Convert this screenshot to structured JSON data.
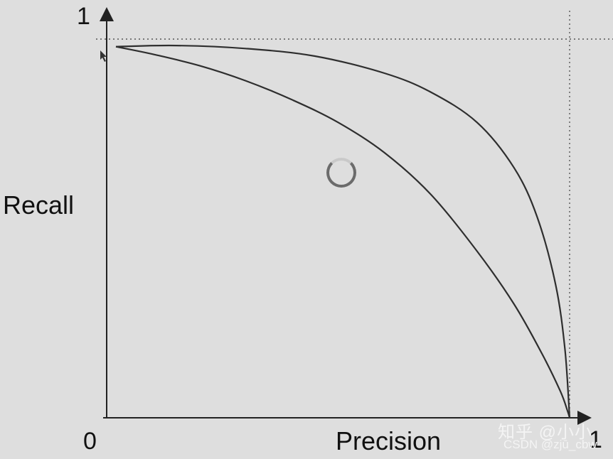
{
  "chart_data": {
    "type": "line",
    "title": "",
    "xlabel": "Precision",
    "ylabel": "Recall",
    "xlim": [
      0,
      1
    ],
    "ylim": [
      0,
      1
    ],
    "tick_labels": {
      "y_top": "1",
      "origin": "0",
      "x_end": "1"
    },
    "reference_lines": {
      "x": 1,
      "y": 1,
      "style": "dotted"
    },
    "grid": false,
    "legend": "none",
    "series": [
      {
        "color": "#2e2e2e",
        "x": [
          0.02,
          0.1,
          0.2,
          0.3,
          0.4,
          0.5,
          0.6,
          0.7,
          0.8,
          0.88,
          0.94,
          0.98,
          0.995,
          1.0
        ],
        "y": [
          0.98,
          0.96,
          0.93,
          0.89,
          0.84,
          0.78,
          0.7,
          0.59,
          0.44,
          0.3,
          0.17,
          0.07,
          0.02,
          0.0
        ]
      },
      {
        "color": "#2e2e2e",
        "x": [
          0.02,
          0.15,
          0.3,
          0.45,
          0.6,
          0.7,
          0.8,
          0.88,
          0.93,
          0.97,
          0.99,
          1.0
        ],
        "y": [
          0.98,
          0.983,
          0.975,
          0.955,
          0.91,
          0.86,
          0.78,
          0.66,
          0.53,
          0.35,
          0.18,
          0.0
        ]
      }
    ]
  },
  "ui": {
    "spinner_icon": "loading-spinner-icon",
    "cursor_icon": "mouse-pointer-icon"
  },
  "watermark": {
    "line1": "知乎 @小小",
    "line2": "CSDN @zjū_cbw"
  }
}
